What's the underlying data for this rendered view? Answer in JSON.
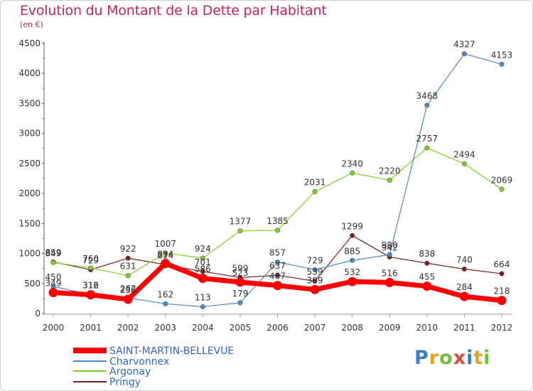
{
  "title": "Evolution du Montant de la Dette par Habitant",
  "subtitle": "(en €)",
  "logo": {
    "text": "Proxiti",
    "colors": [
      "#3a7fc1",
      "#e8a020",
      "#6fbf3a",
      "#e04a3a",
      "#3a7fc1",
      "#e8a020",
      "#6fbf3a"
    ]
  },
  "chart_data": {
    "type": "line",
    "title": "Evolution du Montant de la Dette par Habitant",
    "ylabel": "(en €)",
    "xlabel": "",
    "x": [
      "2000",
      "2001",
      "2002",
      "2003",
      "2004",
      "2005",
      "2006",
      "2007",
      "2008",
      "2009",
      "2010",
      "2011",
      "2012"
    ],
    "ylim": [
      0,
      4500
    ],
    "yticks": [
      "0",
      "500",
      "1000",
      "1500",
      "2000",
      "2500",
      "3000",
      "3500",
      "4000",
      "4500"
    ],
    "grid": false,
    "legend_position": "bottom-left",
    "series": [
      {
        "name": "SAINT-MARTIN-BELLEVUE",
        "color": "#ff0000",
        "values": [
          349,
          312,
          236,
          834,
          586,
          523,
          467,
          399,
          532,
          516,
          455,
          284,
          218
        ],
        "labels": [
          "349",
          "312",
          "236",
          "834",
          "586",
          "523",
          "467",
          "399",
          "532",
          "516",
          "455",
          "284",
          "218"
        ]
      },
      {
        "name": "Charvonnex",
        "color": "#4a8cc4",
        "values": [
          450,
          316,
          262,
          162,
          113,
          179,
          857,
          729,
          885,
          980,
          3468,
          4327,
          4153
        ],
        "labels": [
          "450",
          "316",
          "262",
          "162",
          "113",
          "179",
          "857",
          "729",
          "885",
          "980",
          "3468",
          "4327",
          "4153"
        ]
      },
      {
        "name": "Argonay",
        "color": "#7ed321",
        "values": [
          849,
          760,
          631,
          1007,
          924,
          1377,
          1385,
          2031,
          2340,
          2220,
          2757,
          2494,
          2069
        ],
        "labels": [
          "849",
          "760",
          "631",
          "1007",
          "924",
          "1377",
          "1385",
          "2031",
          "2340",
          "2220",
          "2757",
          "2494",
          "2069"
        ]
      },
      {
        "name": "Pringy",
        "color": "#7a1f1f",
        "values": [
          859,
          729,
          922,
          814,
          701,
          599,
          637,
          539,
          1299,
          942,
          838,
          740,
          664
        ],
        "labels": [
          "859",
          "729",
          "922",
          "814",
          "701",
          "599",
          "637",
          "539",
          "1299",
          "942",
          "838",
          "740",
          "664"
        ]
      }
    ]
  }
}
